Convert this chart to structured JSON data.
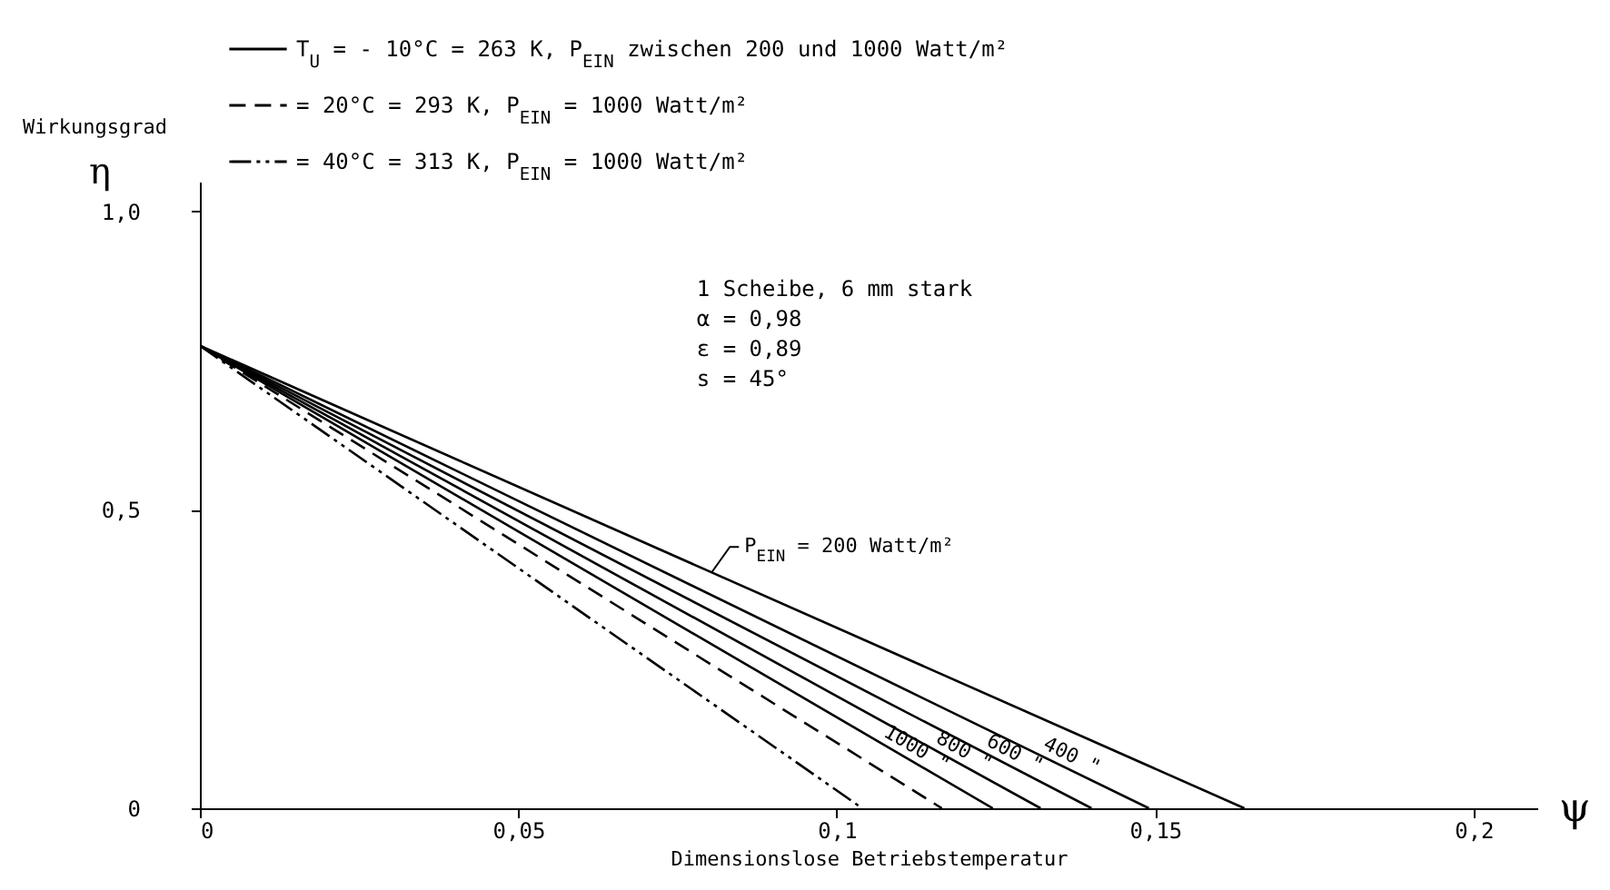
{
  "chart_data": {
    "type": "line",
    "xlabel": "Dimensionslose Betriebstemperatur",
    "ylabel": "Wirkungsgrad",
    "annotations": [
      "T$_{U}$ = - 10°C = 263 K, P$_{EIN}$ zwischen 200 und 1000 Watt/m²",
      "1 Scheibe, 6 mm stark",
      "α = 0,98",
      "ε = 0,89",
      "s = 45°",
      "η",
      "ψ"
    ],
    "series": [
      {
        "name": "P$_{EIN}$ =  200 Watt/m²",
        "color": "#000000",
        "line_style": "solid",
        "x": [
          0,
          0.164
        ],
        "values": [
          0.775,
          0
        ]
      },
      {
        "name": "400     \"",
        "color": "#000000",
        "line_style": "solid",
        "x": [
          0,
          0.149
        ],
        "values": [
          0.775,
          0
        ]
      },
      {
        "name": "600     \"",
        "color": "#000000",
        "line_style": "solid",
        "x": [
          0,
          0.14
        ],
        "values": [
          0.775,
          0
        ]
      },
      {
        "name": "800     \"",
        "color": "#000000",
        "line_style": "solid",
        "x": [
          0,
          0.132
        ],
        "values": [
          0.775,
          0
        ]
      },
      {
        "name": "1000     \"",
        "color": "#000000",
        "line_style": "solid",
        "x": [
          0,
          0.1245
        ],
        "values": [
          0.775,
          0
        ]
      },
      {
        "name": "= 20°C = 293 K, P$_{EIN}$ = 1000 Watt/m²",
        "color": "#000000",
        "line_style": "dashed",
        "x": [
          0,
          0.1165
        ],
        "values": [
          0.775,
          0
        ]
      },
      {
        "name": "= 40°C = 313 K, P$_{EIN}$ = 1000 Watt/m²",
        "color": "#000000",
        "line_style": "dashdot",
        "x": [
          0,
          0.104
        ],
        "values": [
          0.775,
          0
        ]
      }
    ],
    "xlim": [
      0,
      0.21
    ],
    "ylim": [
      0,
      1.05
    ],
    "xticks": [
      {
        "value": 0,
        "label": "0"
      },
      {
        "value": 0.05,
        "label": "0,05"
      },
      {
        "value": 0.1,
        "label": "0,1"
      },
      {
        "value": 0.15,
        "label": "0,15"
      },
      {
        "value": 0.2,
        "label": "0,2"
      }
    ],
    "yticks": [
      {
        "value": 0,
        "label": "0"
      },
      {
        "value": 0.5,
        "label": "0,5"
      },
      {
        "value": 1,
        "label": "1,0"
      }
    ],
    "grid": false,
    "legend": "top left"
  }
}
